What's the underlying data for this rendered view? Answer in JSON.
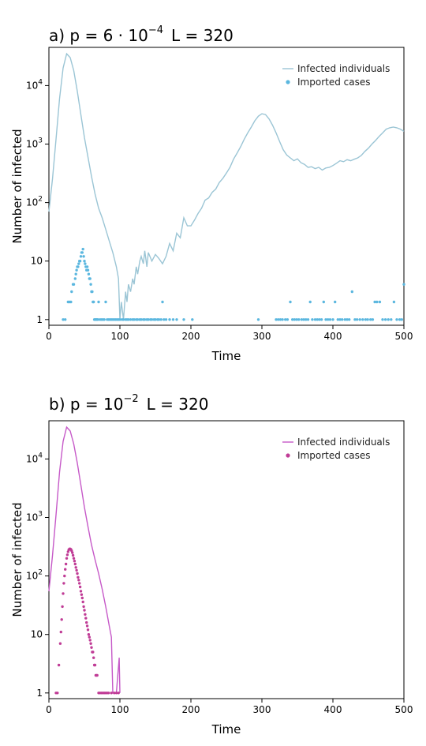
{
  "chart_data": [
    {
      "type": "line",
      "panel": "a",
      "title": {
        "prefix": "a) p = 6 · 10",
        "exp": "−4",
        "suffix": "L = 320"
      },
      "xlabel": "Time",
      "ylabel": "Number of infected",
      "xlim": [
        0,
        500
      ],
      "ylim": [
        0.8,
        45000
      ],
      "yscale": "log",
      "xticks": [
        0,
        100,
        200,
        300,
        400,
        500
      ],
      "yticks": [
        {
          "value": 1,
          "label": "1"
        },
        {
          "value": 10,
          "label": "10"
        },
        {
          "value": 100,
          "base": "10",
          "exp": "2"
        },
        {
          "value": 1000,
          "base": "10",
          "exp": "3"
        },
        {
          "value": 10000,
          "base": "10",
          "exp": "4"
        }
      ],
      "legend_position": "top-right",
      "colors": {
        "line": "#9bc5d5",
        "dots": "#5bb7df"
      },
      "series": [
        {
          "name": "Infected individuals",
          "kind": "line",
          "x": [
            0,
            5,
            10,
            15,
            20,
            25,
            30,
            35,
            40,
            45,
            50,
            55,
            60,
            65,
            70,
            75,
            80,
            85,
            90,
            95,
            98,
            100,
            102,
            105,
            108,
            110,
            112,
            115,
            118,
            120,
            123,
            125,
            128,
            130,
            133,
            135,
            138,
            140,
            145,
            150,
            155,
            160,
            165,
            170,
            175,
            180,
            185,
            190,
            195,
            200,
            205,
            210,
            215,
            220,
            225,
            230,
            235,
            240,
            245,
            250,
            255,
            260,
            265,
            270,
            275,
            280,
            285,
            290,
            295,
            300,
            305,
            310,
            315,
            320,
            325,
            330,
            335,
            340,
            345,
            350,
            355,
            360,
            365,
            370,
            375,
            380,
            385,
            390,
            395,
            400,
            405,
            410,
            415,
            420,
            425,
            430,
            435,
            440,
            445,
            450,
            455,
            460,
            465,
            470,
            475,
            480,
            485,
            490,
            495,
            500
          ],
          "y": [
            70,
            250,
            1200,
            6000,
            20000,
            35000,
            30000,
            18000,
            8000,
            3200,
            1300,
            600,
            280,
            140,
            80,
            55,
            35,
            22,
            14,
            8,
            5,
            1,
            2,
            1,
            3,
            2,
            4,
            3,
            5,
            4,
            8,
            6,
            10,
            12,
            9,
            15,
            8,
            14,
            10,
            13,
            11,
            9,
            12,
            20,
            15,
            30,
            25,
            55,
            40,
            40,
            50,
            65,
            80,
            110,
            120,
            150,
            170,
            220,
            260,
            320,
            400,
            550,
            700,
            900,
            1200,
            1550,
            1950,
            2500,
            3000,
            3300,
            3200,
            2700,
            2100,
            1550,
            1100,
            800,
            650,
            580,
            520,
            560,
            480,
            450,
            400,
            410,
            380,
            400,
            360,
            390,
            400,
            430,
            470,
            520,
            500,
            540,
            520,
            550,
            580,
            640,
            750,
            850,
            1000,
            1150,
            1350,
            1550,
            1800,
            1900,
            1950,
            1900,
            1800,
            1650
          ]
        },
        {
          "name": "Imported cases",
          "kind": "scatter",
          "x": [
            20,
            23,
            27,
            29,
            31,
            32,
            34,
            35,
            37,
            38,
            39,
            40,
            41,
            42,
            43,
            44,
            45,
            46,
            47,
            48,
            49,
            50,
            51,
            52,
            53,
            54,
            55,
            56,
            57,
            58,
            59,
            60,
            61,
            62,
            63,
            64,
            65,
            66,
            67,
            68,
            69,
            70,
            72,
            74,
            76,
            78,
            80,
            82,
            84,
            86,
            88,
            90,
            92,
            94,
            96,
            98,
            100,
            103,
            105,
            108,
            110,
            112,
            115,
            118,
            120,
            123,
            125,
            128,
            130,
            133,
            135,
            138,
            140,
            143,
            145,
            148,
            150,
            153,
            155,
            158,
            160,
            162,
            165,
            170,
            175,
            180,
            190,
            202,
            295,
            320,
            323,
            326,
            329,
            333,
            336,
            340,
            343,
            346,
            349,
            352,
            356,
            359,
            362,
            365,
            368,
            371,
            375,
            378,
            381,
            384,
            387,
            390,
            393,
            396,
            400,
            403,
            407,
            410,
            413,
            417,
            420,
            423,
            427,
            431,
            434,
            438,
            442,
            446,
            449,
            453,
            456,
            459,
            462,
            466,
            470,
            474,
            478,
            482,
            486,
            490,
            494,
            497,
            500
          ],
          "y": [
            1,
            1,
            2,
            2,
            2,
            3,
            4,
            4,
            5,
            6,
            7,
            8,
            8,
            9,
            10,
            10,
            12,
            14,
            14,
            16,
            12,
            10,
            9,
            8,
            7,
            8,
            7,
            6,
            5,
            5,
            4,
            3,
            3,
            2,
            2,
            1,
            1,
            1,
            1,
            1,
            1,
            2,
            1,
            1,
            1,
            1,
            2,
            1,
            1,
            1,
            1,
            1,
            1,
            1,
            1,
            1,
            1,
            1,
            1,
            1,
            1,
            1,
            1,
            1,
            1,
            1,
            1,
            1,
            1,
            1,
            1,
            1,
            1,
            1,
            1,
            1,
            1,
            1,
            1,
            1,
            2,
            1,
            1,
            1,
            1,
            1,
            1,
            1,
            1,
            1,
            1,
            1,
            1,
            1,
            1,
            2,
            1,
            1,
            1,
            1,
            1,
            1,
            1,
            1,
            2,
            1,
            1,
            1,
            1,
            1,
            2,
            1,
            1,
            1,
            1,
            2,
            1,
            1,
            1,
            1,
            1,
            1,
            3,
            1,
            1,
            1,
            1,
            1,
            1,
            1,
            1,
            2,
            2,
            2,
            1,
            1,
            1,
            1,
            2,
            1,
            1,
            1,
            4
          ]
        }
      ]
    },
    {
      "type": "line",
      "panel": "b",
      "title": {
        "prefix": "b) p = 10",
        "exp": "−2",
        "suffix": "L = 320"
      },
      "xlabel": "Time",
      "ylabel": "Number of infected",
      "xlim": [
        0,
        500
      ],
      "ylim": [
        0.8,
        45000
      ],
      "yscale": "log",
      "xticks": [
        0,
        100,
        200,
        300,
        400,
        500
      ],
      "yticks": [
        {
          "value": 1,
          "label": "1"
        },
        {
          "value": 10,
          "label": "10"
        },
        {
          "value": 100,
          "base": "10",
          "exp": "2"
        },
        {
          "value": 1000,
          "base": "10",
          "exp": "3"
        },
        {
          "value": 10000,
          "base": "10",
          "exp": "4"
        }
      ],
      "legend_position": "top-right",
      "colors": {
        "line": "#c659c8",
        "dots": "#c03c96"
      },
      "series": [
        {
          "name": "Infected individuals",
          "kind": "line",
          "x": [
            0,
            5,
            10,
            15,
            20,
            25,
            30,
            35,
            40,
            45,
            50,
            55,
            60,
            65,
            70,
            75,
            80,
            85,
            88,
            90,
            92,
            95,
            97,
            99,
            100
          ],
          "y": [
            55,
            220,
            1100,
            6000,
            20000,
            35000,
            30000,
            18000,
            8500,
            3600,
            1500,
            700,
            340,
            190,
            110,
            60,
            30,
            14,
            9,
            1,
            1,
            1,
            2,
            4,
            1
          ]
        },
        {
          "name": "Imported cases",
          "kind": "scatter",
          "x": [
            10,
            12,
            14,
            16,
            17,
            18,
            19,
            20,
            21,
            22,
            23,
            24,
            25,
            26,
            27,
            28,
            29,
            30,
            31,
            32,
            33,
            34,
            35,
            36,
            37,
            38,
            39,
            40,
            41,
            42,
            43,
            44,
            45,
            46,
            47,
            48,
            49,
            50,
            51,
            52,
            53,
            54,
            55,
            56,
            57,
            58,
            59,
            60,
            61,
            62,
            63,
            64,
            65,
            66,
            67,
            68,
            70,
            72,
            74,
            76,
            78,
            80,
            82,
            84,
            88,
            92,
            95,
            98
          ],
          "y": [
            1,
            1,
            3,
            7,
            11,
            18,
            30,
            50,
            75,
            100,
            130,
            160,
            200,
            230,
            260,
            280,
            290,
            290,
            285,
            270,
            250,
            225,
            200,
            180,
            160,
            140,
            125,
            110,
            95,
            85,
            75,
            65,
            55,
            48,
            42,
            36,
            30,
            26,
            22,
            19,
            16,
            14,
            12,
            10,
            9,
            8,
            7,
            6,
            5,
            5,
            4,
            3,
            3,
            2,
            2,
            2,
            1,
            1,
            1,
            1,
            1,
            1,
            1,
            1,
            1,
            1,
            1,
            1
          ]
        }
      ]
    }
  ]
}
